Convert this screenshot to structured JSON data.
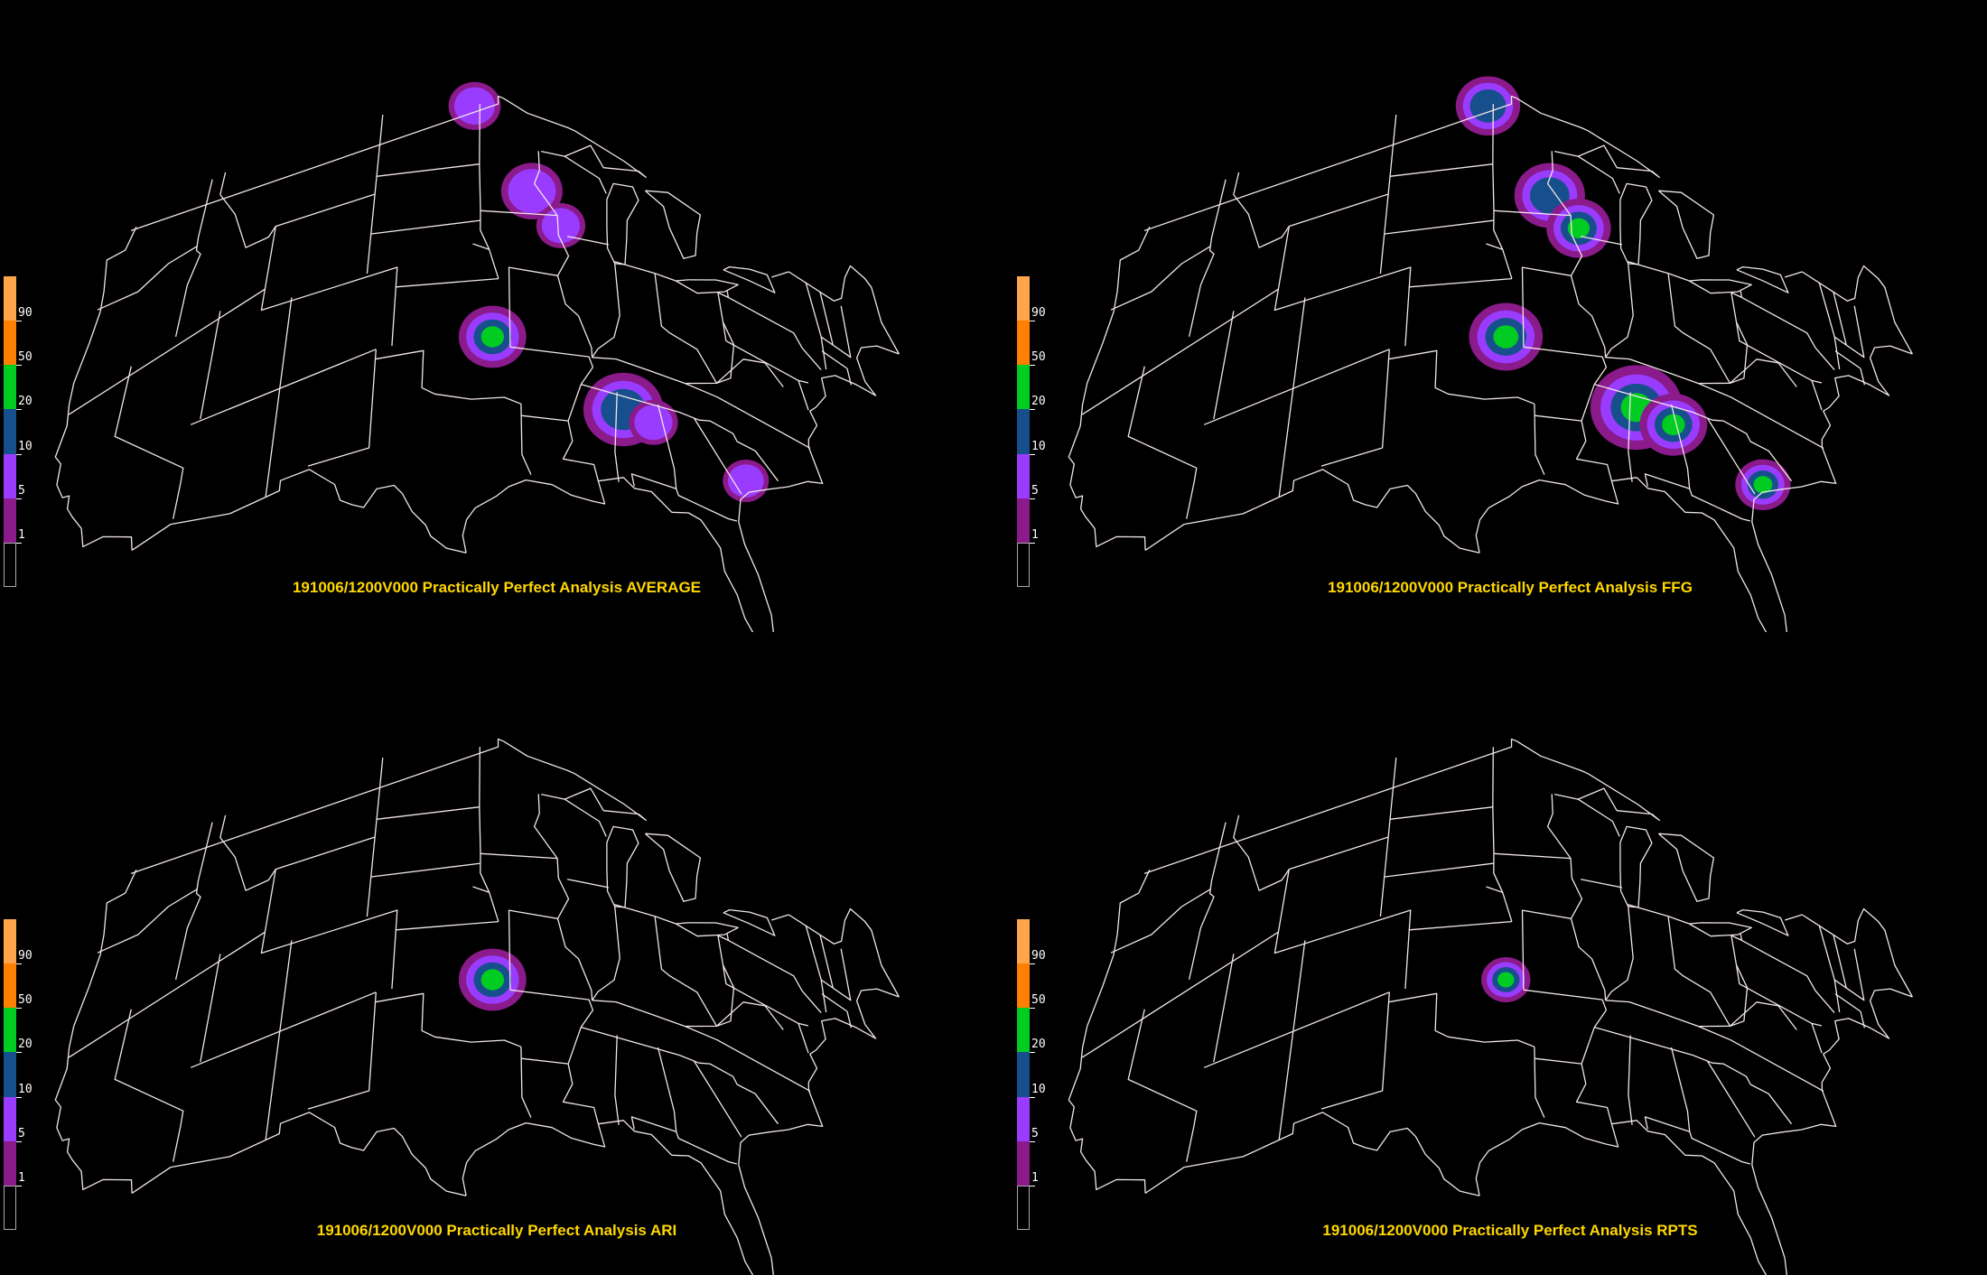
{
  "colors": {
    "background": "#000000",
    "map_lines": "#f2e6e6",
    "caption_text": "#ffd700"
  },
  "legend": {
    "bins": [
      {
        "label": "",
        "color": "#000000"
      },
      {
        "label": "1",
        "color": "#8b1a8b"
      },
      {
        "label": "5",
        "color": "#9a3cff"
      },
      {
        "label": "10",
        "color": "#174f8c"
      },
      {
        "label": "20",
        "color": "#00cc22"
      },
      {
        "label": "50",
        "color": "#ff7f00"
      },
      {
        "label": "90",
        "color": "#ffa64d"
      }
    ]
  },
  "panels": [
    {
      "caption": "191006/1200V000 Practically Perfect Analysis AVERAGE",
      "blobs": [
        {
          "lon": -97.0,
          "lat": 48.9,
          "r": 1.7,
          "peak": "5"
        },
        {
          "lon": -92.9,
          "lat": 44.6,
          "r": 2.0,
          "peak": "5"
        },
        {
          "lon": -91.0,
          "lat": 43.0,
          "r": 1.6,
          "peak": "5"
        },
        {
          "lon": -95.7,
          "lat": 37.0,
          "r": 2.2,
          "peak": "20"
        },
        {
          "lon": -87.8,
          "lat": 34.2,
          "r": 2.6,
          "peak": "10"
        },
        {
          "lon": -86.0,
          "lat": 34.0,
          "r": 1.6,
          "peak": "5"
        },
        {
          "lon": -80.6,
          "lat": 33.0,
          "r": 1.5,
          "peak": "5"
        }
      ]
    },
    {
      "caption": "191006/1200V000 Practically Perfect Analysis FFG",
      "blobs": [
        {
          "lon": -97.0,
          "lat": 48.9,
          "r": 2.1,
          "peak": "10"
        },
        {
          "lon": -92.6,
          "lat": 44.4,
          "r": 2.3,
          "peak": "10"
        },
        {
          "lon": -90.7,
          "lat": 42.9,
          "r": 2.1,
          "peak": "20"
        },
        {
          "lon": -95.7,
          "lat": 37.0,
          "r": 2.4,
          "peak": "20"
        },
        {
          "lon": -87.8,
          "lat": 34.3,
          "r": 3.0,
          "peak": "20"
        },
        {
          "lon": -85.6,
          "lat": 34.0,
          "r": 2.2,
          "peak": "20"
        },
        {
          "lon": -80.4,
          "lat": 32.9,
          "r": 1.8,
          "peak": "20"
        }
      ]
    },
    {
      "caption": "191006/1200V000 Practically Perfect Analysis ARI",
      "blobs": [
        {
          "lon": -95.7,
          "lat": 37.0,
          "r": 2.2,
          "peak": "20"
        }
      ]
    },
    {
      "caption": "191006/1200V000 Practically Perfect Analysis RPTS",
      "blobs": [
        {
          "lon": -95.7,
          "lat": 37.0,
          "r": 1.6,
          "peak": "20"
        }
      ]
    }
  ]
}
